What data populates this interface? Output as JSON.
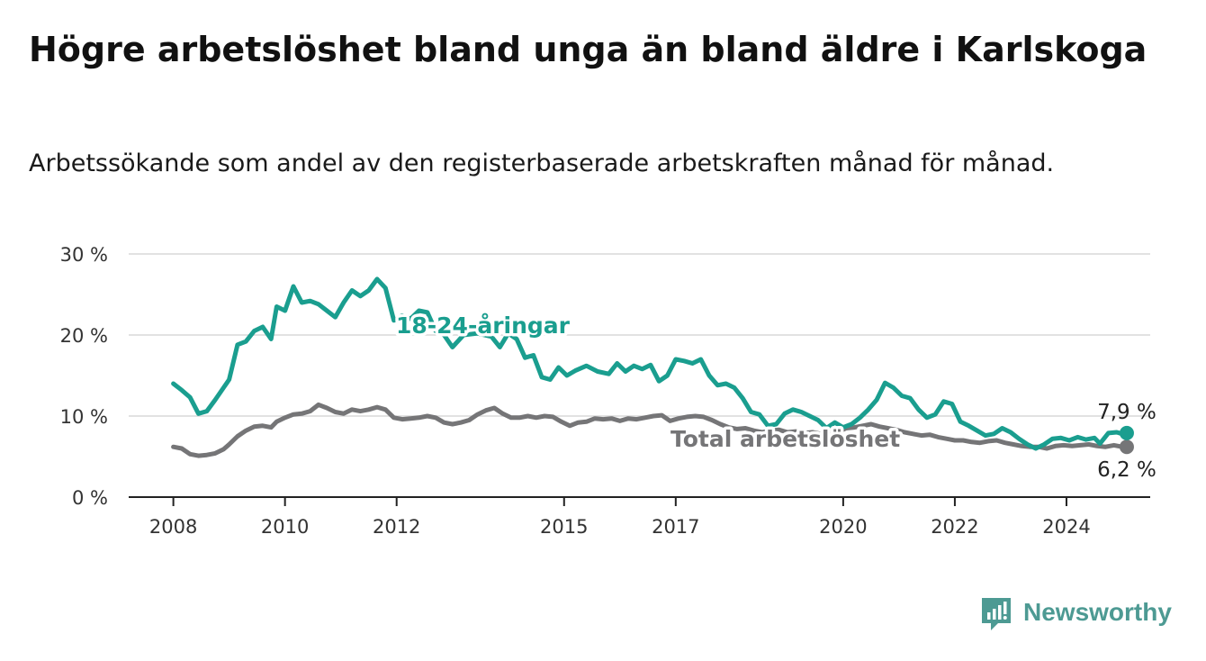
{
  "title": "Högre arbetslöshet bland unga än bland äldre i Karlskoga",
  "subtitle": "Arbetssökande som andel av den registerbaserade arbetskraften månad för månad.",
  "brand": {
    "name": "Newsworthy",
    "color": "#4d9a93"
  },
  "chart_data": {
    "type": "line",
    "y_ticks": [
      "0 %",
      "10 %",
      "20 %",
      "30 %"
    ],
    "x_ticks": [
      "2008",
      "2010",
      "2012",
      "2015",
      "2017",
      "2020",
      "2022",
      "2024"
    ],
    "ylim": [
      0,
      30
    ],
    "xlim": [
      2007.2,
      2025.5
    ],
    "grid": true,
    "series": [
      {
        "name": "18-24-åringar",
        "color": "#1a9e8f",
        "end_label": "7,9 %",
        "points": [
          [
            2008.0,
            14.0
          ],
          [
            2008.15,
            13.2
          ],
          [
            2008.3,
            12.3
          ],
          [
            2008.45,
            10.3
          ],
          [
            2008.6,
            10.6
          ],
          [
            2008.75,
            12.0
          ],
          [
            2008.9,
            13.5
          ],
          [
            2009.0,
            14.5
          ],
          [
            2009.15,
            18.8
          ],
          [
            2009.3,
            19.2
          ],
          [
            2009.45,
            20.5
          ],
          [
            2009.6,
            21.0
          ],
          [
            2009.75,
            19.5
          ],
          [
            2009.85,
            23.5
          ],
          [
            2010.0,
            23.0
          ],
          [
            2010.15,
            26.0
          ],
          [
            2010.3,
            24.0
          ],
          [
            2010.45,
            24.2
          ],
          [
            2010.6,
            23.8
          ],
          [
            2010.75,
            23.0
          ],
          [
            2010.9,
            22.2
          ],
          [
            2011.05,
            24.0
          ],
          [
            2011.2,
            25.5
          ],
          [
            2011.35,
            24.8
          ],
          [
            2011.5,
            25.5
          ],
          [
            2011.65,
            26.9
          ],
          [
            2011.8,
            25.8
          ],
          [
            2011.95,
            21.8
          ],
          [
            2012.1,
            22.4
          ],
          [
            2012.25,
            22.0
          ],
          [
            2012.4,
            23.0
          ],
          [
            2012.55,
            22.8
          ],
          [
            2012.7,
            20.5
          ],
          [
            2012.85,
            20.0
          ],
          [
            2013.0,
            18.5
          ],
          [
            2013.2,
            20.0
          ],
          [
            2013.45,
            20.2
          ],
          [
            2013.7,
            19.8
          ],
          [
            2013.85,
            18.5
          ],
          [
            2014.0,
            20.2
          ],
          [
            2014.15,
            19.5
          ],
          [
            2014.3,
            17.2
          ],
          [
            2014.45,
            17.5
          ],
          [
            2014.6,
            14.8
          ],
          [
            2014.75,
            14.5
          ],
          [
            2014.9,
            16.0
          ],
          [
            2015.05,
            15.0
          ],
          [
            2015.2,
            15.6
          ],
          [
            2015.4,
            16.2
          ],
          [
            2015.6,
            15.5
          ],
          [
            2015.8,
            15.2
          ],
          [
            2015.95,
            16.5
          ],
          [
            2016.1,
            15.5
          ],
          [
            2016.25,
            16.2
          ],
          [
            2016.4,
            15.8
          ],
          [
            2016.55,
            16.3
          ],
          [
            2016.7,
            14.3
          ],
          [
            2016.85,
            15.0
          ],
          [
            2017.0,
            17.0
          ],
          [
            2017.15,
            16.8
          ],
          [
            2017.3,
            16.5
          ],
          [
            2017.45,
            17.0
          ],
          [
            2017.6,
            15.0
          ],
          [
            2017.75,
            13.8
          ],
          [
            2017.9,
            14.0
          ],
          [
            2018.05,
            13.5
          ],
          [
            2018.2,
            12.2
          ],
          [
            2018.35,
            10.5
          ],
          [
            2018.5,
            10.2
          ],
          [
            2018.65,
            8.8
          ],
          [
            2018.8,
            9.0
          ],
          [
            2018.95,
            10.3
          ],
          [
            2019.1,
            10.8
          ],
          [
            2019.25,
            10.5
          ],
          [
            2019.4,
            10.0
          ],
          [
            2019.55,
            9.5
          ],
          [
            2019.7,
            8.5
          ],
          [
            2019.85,
            9.2
          ],
          [
            2020.0,
            8.6
          ],
          [
            2020.15,
            9.0
          ],
          [
            2020.3,
            9.8
          ],
          [
            2020.45,
            10.8
          ],
          [
            2020.6,
            12.0
          ],
          [
            2020.75,
            14.1
          ],
          [
            2020.9,
            13.5
          ],
          [
            2021.05,
            12.5
          ],
          [
            2021.2,
            12.2
          ],
          [
            2021.35,
            10.8
          ],
          [
            2021.5,
            9.8
          ],
          [
            2021.65,
            10.2
          ],
          [
            2021.8,
            11.8
          ],
          [
            2021.95,
            11.5
          ],
          [
            2022.1,
            9.3
          ],
          [
            2022.25,
            8.8
          ],
          [
            2022.4,
            8.2
          ],
          [
            2022.55,
            7.6
          ],
          [
            2022.7,
            7.8
          ],
          [
            2022.85,
            8.5
          ],
          [
            2023.0,
            8.0
          ],
          [
            2023.15,
            7.2
          ],
          [
            2023.3,
            6.5
          ],
          [
            2023.45,
            6.0
          ],
          [
            2023.6,
            6.5
          ],
          [
            2023.75,
            7.2
          ],
          [
            2023.9,
            7.3
          ],
          [
            2024.05,
            7.0
          ],
          [
            2024.2,
            7.4
          ],
          [
            2024.35,
            7.1
          ],
          [
            2024.5,
            7.3
          ],
          [
            2024.6,
            6.6
          ],
          [
            2024.75,
            7.9
          ],
          [
            2024.9,
            8.0
          ],
          [
            2025.0,
            7.8
          ],
          [
            2025.08,
            7.9
          ]
        ]
      },
      {
        "name": "Total arbetslöshet",
        "color": "#757577",
        "end_label": "6,2 %",
        "points": [
          [
            2008.0,
            6.2
          ],
          [
            2008.15,
            6.0
          ],
          [
            2008.3,
            5.3
          ],
          [
            2008.45,
            5.1
          ],
          [
            2008.6,
            5.2
          ],
          [
            2008.75,
            5.4
          ],
          [
            2008.9,
            5.9
          ],
          [
            2009.0,
            6.5
          ],
          [
            2009.15,
            7.5
          ],
          [
            2009.3,
            8.2
          ],
          [
            2009.45,
            8.7
          ],
          [
            2009.6,
            8.8
          ],
          [
            2009.75,
            8.6
          ],
          [
            2009.85,
            9.3
          ],
          [
            2010.0,
            9.8
          ],
          [
            2010.15,
            10.2
          ],
          [
            2010.3,
            10.3
          ],
          [
            2010.45,
            10.6
          ],
          [
            2010.6,
            11.4
          ],
          [
            2010.75,
            11.0
          ],
          [
            2010.9,
            10.5
          ],
          [
            2011.05,
            10.3
          ],
          [
            2011.2,
            10.8
          ],
          [
            2011.35,
            10.6
          ],
          [
            2011.5,
            10.8
          ],
          [
            2011.65,
            11.1
          ],
          [
            2011.8,
            10.8
          ],
          [
            2011.95,
            9.8
          ],
          [
            2012.1,
            9.6
          ],
          [
            2012.25,
            9.7
          ],
          [
            2012.4,
            9.8
          ],
          [
            2012.55,
            10.0
          ],
          [
            2012.7,
            9.8
          ],
          [
            2012.85,
            9.2
          ],
          [
            2013.0,
            9.0
          ],
          [
            2013.15,
            9.2
          ],
          [
            2013.3,
            9.5
          ],
          [
            2013.45,
            10.2
          ],
          [
            2013.6,
            10.7
          ],
          [
            2013.75,
            11.0
          ],
          [
            2013.9,
            10.3
          ],
          [
            2014.05,
            9.8
          ],
          [
            2014.2,
            9.8
          ],
          [
            2014.35,
            10.0
          ],
          [
            2014.5,
            9.8
          ],
          [
            2014.65,
            10.0
          ],
          [
            2014.8,
            9.9
          ],
          [
            2014.95,
            9.3
          ],
          [
            2015.1,
            8.8
          ],
          [
            2015.25,
            9.2
          ],
          [
            2015.4,
            9.3
          ],
          [
            2015.55,
            9.7
          ],
          [
            2015.7,
            9.6
          ],
          [
            2015.85,
            9.7
          ],
          [
            2016.0,
            9.4
          ],
          [
            2016.15,
            9.7
          ],
          [
            2016.3,
            9.6
          ],
          [
            2016.45,
            9.8
          ],
          [
            2016.6,
            10.0
          ],
          [
            2016.75,
            10.1
          ],
          [
            2016.9,
            9.4
          ],
          [
            2017.05,
            9.7
          ],
          [
            2017.2,
            9.9
          ],
          [
            2017.35,
            10.0
          ],
          [
            2017.5,
            9.9
          ],
          [
            2017.65,
            9.5
          ],
          [
            2017.8,
            9.0
          ],
          [
            2017.95,
            8.6
          ],
          [
            2018.1,
            8.4
          ],
          [
            2018.25,
            8.5
          ],
          [
            2018.4,
            8.2
          ],
          [
            2018.55,
            8.0
          ],
          [
            2018.7,
            8.2
          ],
          [
            2018.85,
            8.3
          ],
          [
            2019.0,
            8.0
          ],
          [
            2019.15,
            8.1
          ],
          [
            2019.3,
            7.9
          ],
          [
            2019.45,
            8.0
          ],
          [
            2019.6,
            7.8
          ],
          [
            2019.75,
            8.1
          ],
          [
            2019.9,
            8.0
          ],
          [
            2020.05,
            8.5
          ],
          [
            2020.2,
            8.6
          ],
          [
            2020.35,
            8.8
          ],
          [
            2020.5,
            9.0
          ],
          [
            2020.65,
            8.7
          ],
          [
            2020.8,
            8.5
          ],
          [
            2020.95,
            8.3
          ],
          [
            2021.1,
            8.0
          ],
          [
            2021.25,
            7.8
          ],
          [
            2021.4,
            7.6
          ],
          [
            2021.55,
            7.7
          ],
          [
            2021.7,
            7.4
          ],
          [
            2021.85,
            7.2
          ],
          [
            2022.0,
            7.0
          ],
          [
            2022.15,
            7.0
          ],
          [
            2022.3,
            6.8
          ],
          [
            2022.45,
            6.7
          ],
          [
            2022.6,
            6.9
          ],
          [
            2022.75,
            7.0
          ],
          [
            2022.9,
            6.7
          ],
          [
            2023.05,
            6.5
          ],
          [
            2023.2,
            6.3
          ],
          [
            2023.35,
            6.2
          ],
          [
            2023.5,
            6.2
          ],
          [
            2023.65,
            6.0
          ],
          [
            2023.8,
            6.3
          ],
          [
            2023.95,
            6.4
          ],
          [
            2024.1,
            6.3
          ],
          [
            2024.25,
            6.4
          ],
          [
            2024.4,
            6.5
          ],
          [
            2024.55,
            6.3
          ],
          [
            2024.7,
            6.2
          ],
          [
            2024.85,
            6.4
          ],
          [
            2025.0,
            6.2
          ],
          [
            2025.08,
            6.2
          ]
        ]
      }
    ]
  }
}
